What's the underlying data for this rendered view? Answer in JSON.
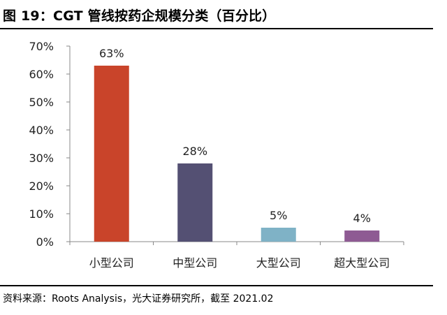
{
  "title": "图 19：CGT 管线按药企规模分类（百分比）",
  "source": "资料来源：Roots Analysis，光大证券研究所，截至 2021.02",
  "chart_data": {
    "type": "bar",
    "categories": [
      "小型公司",
      "中型公司",
      "大型公司",
      "超大型公司"
    ],
    "values": [
      63,
      28,
      5,
      4
    ],
    "data_labels": [
      "63%",
      "28%",
      "5%",
      "4%"
    ],
    "bar_colors": [
      "#c9442a",
      "#545073",
      "#7fb2c6",
      "#8e5a93"
    ],
    "ylim": [
      0,
      70
    ],
    "yticks": [
      0,
      10,
      20,
      30,
      40,
      50,
      60,
      70
    ],
    "ytick_labels": [
      "0%",
      "10%",
      "20%",
      "30%",
      "40%",
      "50%",
      "60%",
      "70%"
    ],
    "grid": false,
    "xlabel": "",
    "ylabel": ""
  }
}
